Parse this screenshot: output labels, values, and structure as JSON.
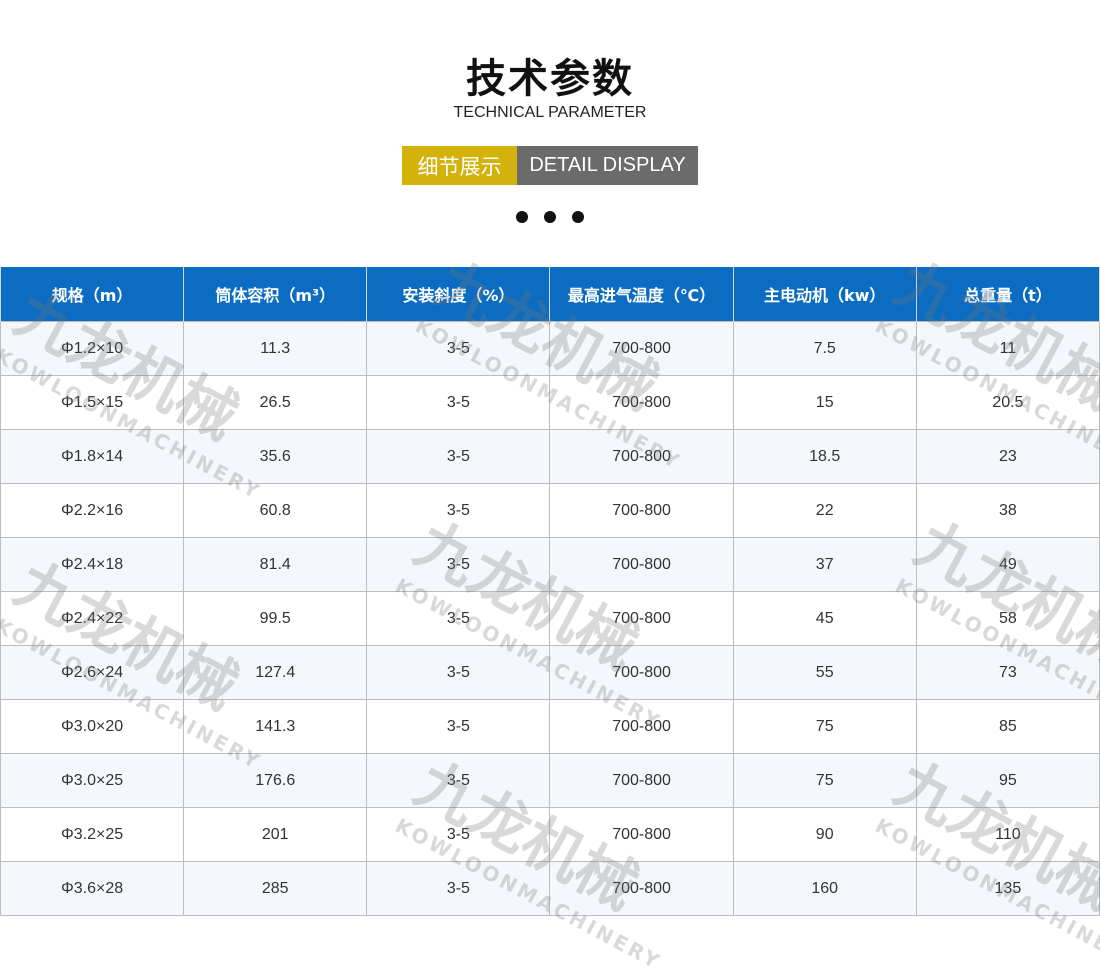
{
  "header": {
    "title": "技术参数",
    "subtitle": "TECHNICAL PARAMETER",
    "badge_cn": "细节展示",
    "badge_en": "DETAIL DISPLAY"
  },
  "colors": {
    "header_bg": "#0b6cc1",
    "badge_cn_bg": "#d4b20c",
    "badge_en_bg": "#6b6b6b"
  },
  "watermark": {
    "cn": "九龙机械",
    "en": "KOWLOONMACHINERY"
  },
  "table": {
    "columns": [
      "规格（m）",
      "筒体容积（m³）",
      "安装斜度（%）",
      "最高进气温度（℃）",
      "主电动机（kw）",
      "总重量（t）"
    ],
    "rows": [
      [
        "Φ1.2×10",
        "11.3",
        "3-5",
        "700-800",
        "7.5",
        "11"
      ],
      [
        "Φ1.5×15",
        "26.5",
        "3-5",
        "700-800",
        "15",
        "20.5"
      ],
      [
        "Φ1.8×14",
        "35.6",
        "3-5",
        "700-800",
        "18.5",
        "23"
      ],
      [
        "Φ2.2×16",
        "60.8",
        "3-5",
        "700-800",
        "22",
        "38"
      ],
      [
        "Φ2.4×18",
        "81.4",
        "3-5",
        "700-800",
        "37",
        "49"
      ],
      [
        "Φ2.4×22",
        "99.5",
        "3-5",
        "700-800",
        "45",
        "58"
      ],
      [
        "Φ2.6×24",
        "127.4",
        "3-5",
        "700-800",
        "55",
        "73"
      ],
      [
        "Φ3.0×20",
        "141.3",
        "3-5",
        "700-800",
        "75",
        "85"
      ],
      [
        "Φ3.0×25",
        "176.6",
        "3-5",
        "700-800",
        "75",
        "95"
      ],
      [
        "Φ3.2×25",
        "201",
        "3-5",
        "700-800",
        "90",
        "110"
      ],
      [
        "Φ3.6×28",
        "285",
        "3-5",
        "700-800",
        "160",
        "135"
      ]
    ]
  }
}
